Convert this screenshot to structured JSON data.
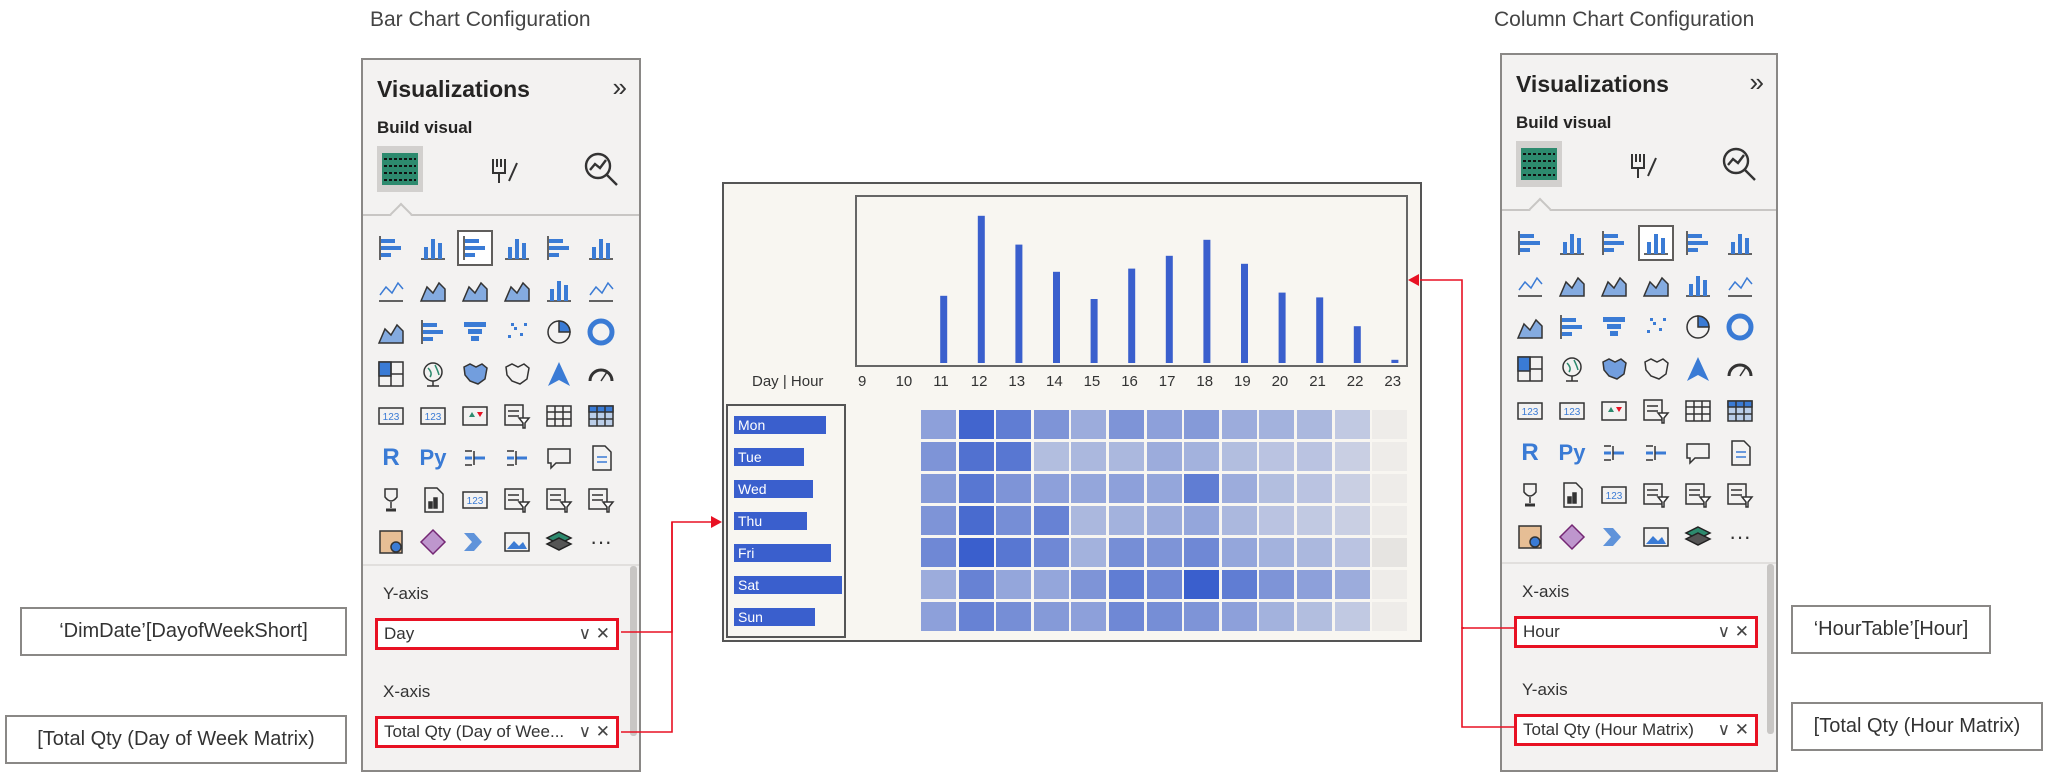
{
  "left_pane": {
    "section_title": "Bar Chart Configuration",
    "title": "Visualizations",
    "subtitle": "Build visual",
    "wells": [
      {
        "label": "Y-axis",
        "field": "Day"
      },
      {
        "label": "X-axis",
        "field": "Total Qty (Day of Wee..."
      }
    ],
    "callouts": [
      "‘DimDate’[DayofWeekShort]",
      "[Total Qty (Day of Week Matrix)"
    ],
    "selected_gallery_icon": "stacked-bar-chart"
  },
  "right_pane": {
    "section_title": "Column Chart Configuration",
    "title": "Visualizations",
    "subtitle": "Build visual",
    "wells": [
      {
        "label": "X-axis",
        "field": "Hour"
      },
      {
        "label": "Y-axis",
        "field": "Total Qty (Hour Matrix)"
      }
    ],
    "callouts": [
      "‘HourTable’[Hour]",
      "[Total Qty (Hour Matrix)"
    ],
    "selected_gallery_icon": "stacked-column-chart"
  },
  "gallery_icons": [
    [
      "stacked-bar-icon",
      "stacked-column-icon",
      "clustered-bar-icon",
      "clustered-column-icon",
      "100-bar-icon",
      "100-column-icon"
    ],
    [
      "line-chart-icon",
      "area-chart-icon",
      "stacked-area-icon",
      "ribbon-icon",
      "line-column-icon",
      "line-clustered-icon"
    ],
    [
      "waterfall-icon",
      "funnel-bars-icon",
      "funnel-icon",
      "scatter-icon",
      "pie-icon",
      "donut-icon"
    ],
    [
      "treemap-icon",
      "globe-map-icon",
      "filled-map-icon",
      "shape-map-icon",
      "azure-map-icon",
      "gauge-icon"
    ],
    [
      "card-icon",
      "multi-row-card-icon",
      "kpi-icon",
      "slicer-icon",
      "table-icon",
      "matrix-icon"
    ],
    [
      "r-visual-icon",
      "python-visual-icon",
      "key-influencers-icon",
      "decomposition-tree-icon",
      "qna-icon",
      "paginated-report-icon"
    ],
    [
      "trophy-icon",
      "smart-narrative-icon",
      "card-new-icon",
      "slicer-new-icon",
      "button-slicer-icon",
      "list-slicer-icon"
    ],
    [
      "azure-map-2-icon",
      "power-apps-icon",
      "power-automate-icon",
      "image-icon",
      "layers-icon",
      "more-icon"
    ]
  ],
  "gallery_text": {
    "card": "123",
    "r": "R",
    "py": "Py",
    "more": "···"
  },
  "chart_data": {
    "type": "bar",
    "axis_corner_label": "Day | Hour",
    "categories": [
      "9",
      "10",
      "11",
      "12",
      "13",
      "14",
      "15",
      "16",
      "17",
      "18",
      "19",
      "20",
      "21",
      "22",
      "23"
    ],
    "values": [
      0,
      0,
      42,
      92,
      74,
      57,
      40,
      59,
      67,
      77,
      62,
      44,
      41,
      23,
      2
    ],
    "ylim": [
      0,
      100
    ],
    "days": [
      "Mon",
      "Tue",
      "Wed",
      "Thu",
      "Fri",
      "Sat",
      "Sun"
    ],
    "day_values": [
      85,
      65,
      73,
      68,
      90,
      100,
      75
    ],
    "heatmap_hours": [
      "11",
      "12",
      "13",
      "14",
      "15",
      "16",
      "17",
      "18",
      "19",
      "20",
      "21",
      "22",
      "23"
    ],
    "heatmap": [
      [
        0.45,
        0.95,
        0.75,
        0.55,
        0.35,
        0.55,
        0.45,
        0.5,
        0.35,
        0.3,
        0.25,
        0.1,
        0
      ],
      [
        0.55,
        0.85,
        0.8,
        0.2,
        0.25,
        0.25,
        0.35,
        0.3,
        0.2,
        0.15,
        0.15,
        0.05,
        0
      ],
      [
        0.5,
        0.8,
        0.55,
        0.45,
        0.4,
        0.45,
        0.4,
        0.75,
        0.35,
        0.2,
        0.15,
        0.05,
        0
      ],
      [
        0.55,
        0.9,
        0.6,
        0.7,
        0.25,
        0.3,
        0.35,
        0.4,
        0.25,
        0.15,
        0.1,
        0.05,
        0
      ],
      [
        0.65,
        1.0,
        0.8,
        0.65,
        0.3,
        0.6,
        0.55,
        0.65,
        0.4,
        0.3,
        0.25,
        0.15,
        0.05
      ],
      [
        0.35,
        0.7,
        0.4,
        0.4,
        0.55,
        0.75,
        0.65,
        1.0,
        0.75,
        0.55,
        0.45,
        0.35,
        0
      ],
      [
        0.45,
        0.7,
        0.6,
        0.5,
        0.45,
        0.65,
        0.6,
        0.55,
        0.45,
        0.3,
        0.2,
        0.1,
        0
      ]
    ],
    "bar_color": "#3a5fcd",
    "heatmap_color": "#3a5fcd",
    "arrow_color": "#e81123"
  }
}
